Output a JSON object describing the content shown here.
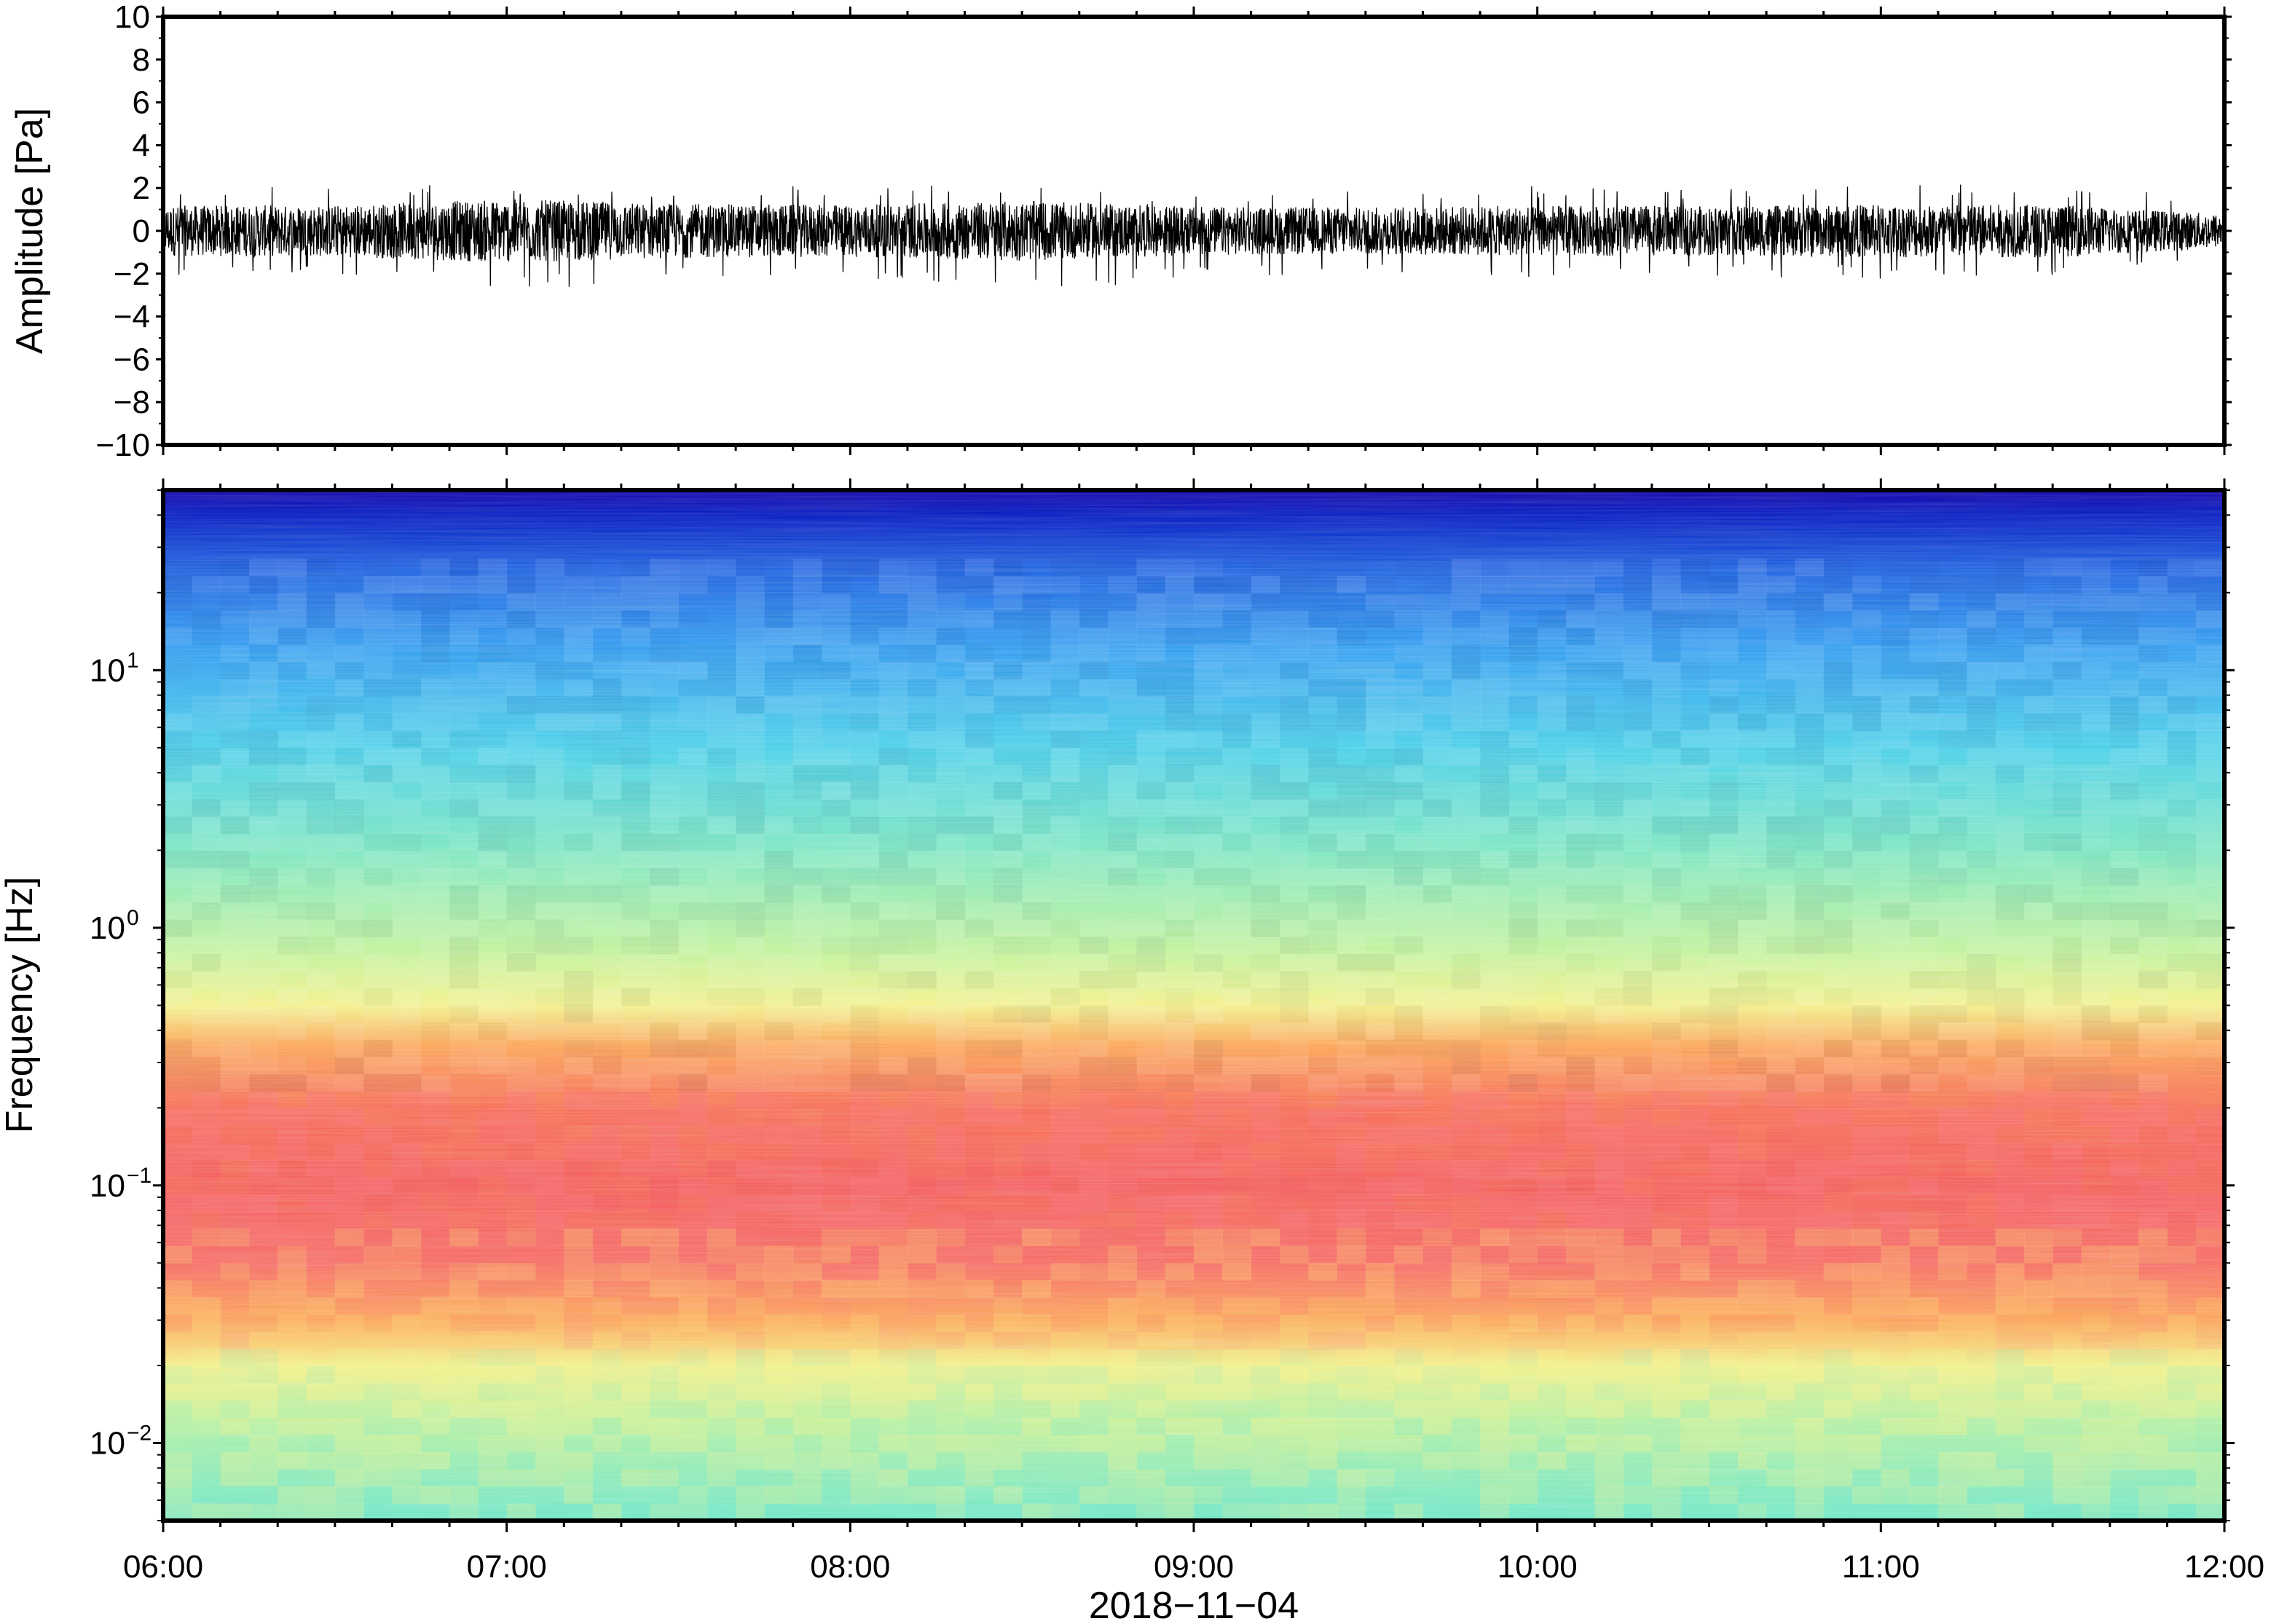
{
  "chart_data": [
    {
      "type": "line",
      "name": "waveform",
      "ylabel": "Amplitude [Pa]",
      "ylim": [
        -10,
        10
      ],
      "y_ticks": [
        -10,
        -8,
        -6,
        -4,
        -2,
        0,
        2,
        4,
        6,
        8,
        10
      ],
      "y_tick_labels": [
        "−10",
        "−8",
        "−6",
        "−4",
        "−2",
        "0",
        "2",
        "4",
        "6",
        "8",
        "10"
      ],
      "xlim": [
        "06:00",
        "12:00"
      ],
      "trace_color": "#000000",
      "series": [
        {
          "x": [
            "06:00",
            "06:30",
            "07:00",
            "07:30",
            "08:00",
            "08:30",
            "09:00",
            "09:30",
            "10:00",
            "10:30",
            "11:00",
            "11:30",
            "12:00"
          ],
          "envelope_min": [
            -2.3,
            -2.3,
            -3.0,
            -2.4,
            -2.2,
            -3.0,
            -2.2,
            -2.0,
            -2.2,
            -2.1,
            -2.3,
            -2.2,
            -1.5
          ],
          "envelope_max": [
            2.0,
            2.1,
            2.4,
            2.2,
            2.2,
            2.1,
            1.9,
            2.0,
            2.1,
            2.1,
            2.2,
            2.3,
            1.4
          ]
        }
      ]
    },
    {
      "type": "heatmap",
      "name": "spectrogram",
      "xlabel": "2018−11−04",
      "ylabel": "Frequency [Hz]",
      "y_scale": "log",
      "ylim": [
        0.005,
        50
      ],
      "y_ticks": [
        0.01,
        0.1,
        1,
        10
      ],
      "y_tick_labels": [
        {
          "base": "10",
          "exp": "−2"
        },
        {
          "base": "10",
          "exp": "−1"
        },
        {
          "base": "10",
          "exp": "0"
        },
        {
          "base": "10",
          "exp": "1"
        }
      ],
      "x_ticks": [
        "06:00",
        "07:00",
        "08:00",
        "09:00",
        "10:00",
        "11:00",
        "12:00"
      ],
      "colormap": [
        "#0018c0",
        "#1a5fe0",
        "#2f9df0",
        "#48cfe8",
        "#7ae6c0",
        "#c2f29a",
        "#f2f08a",
        "#fcd070",
        "#fba455",
        "#f56a55",
        "#f25858",
        "#f87a80"
      ],
      "frequency_profile": [
        {
          "freq": 50,
          "color": "#1000a8"
        },
        {
          "freq": 40,
          "color": "#0018c0"
        },
        {
          "freq": 25,
          "color": "#1a5fe0"
        },
        {
          "freq": 12,
          "color": "#2f9df0"
        },
        {
          "freq": 5,
          "color": "#48cfe8"
        },
        {
          "freq": 2,
          "color": "#7ae6c0"
        },
        {
          "freq": 0.8,
          "color": "#c2f29a"
        },
        {
          "freq": 0.5,
          "color": "#f2f08a"
        },
        {
          "freq": 0.35,
          "color": "#fba455"
        },
        {
          "freq": 0.2,
          "color": "#f56a55"
        },
        {
          "freq": 0.1,
          "color": "#f25858"
        },
        {
          "freq": 0.05,
          "color": "#f56a60"
        },
        {
          "freq": 0.03,
          "color": "#fba455"
        },
        {
          "freq": 0.02,
          "color": "#f2f08a"
        },
        {
          "freq": 0.012,
          "color": "#b8f0a0"
        },
        {
          "freq": 0.005,
          "color": "#6ee6c8"
        }
      ]
    }
  ]
}
